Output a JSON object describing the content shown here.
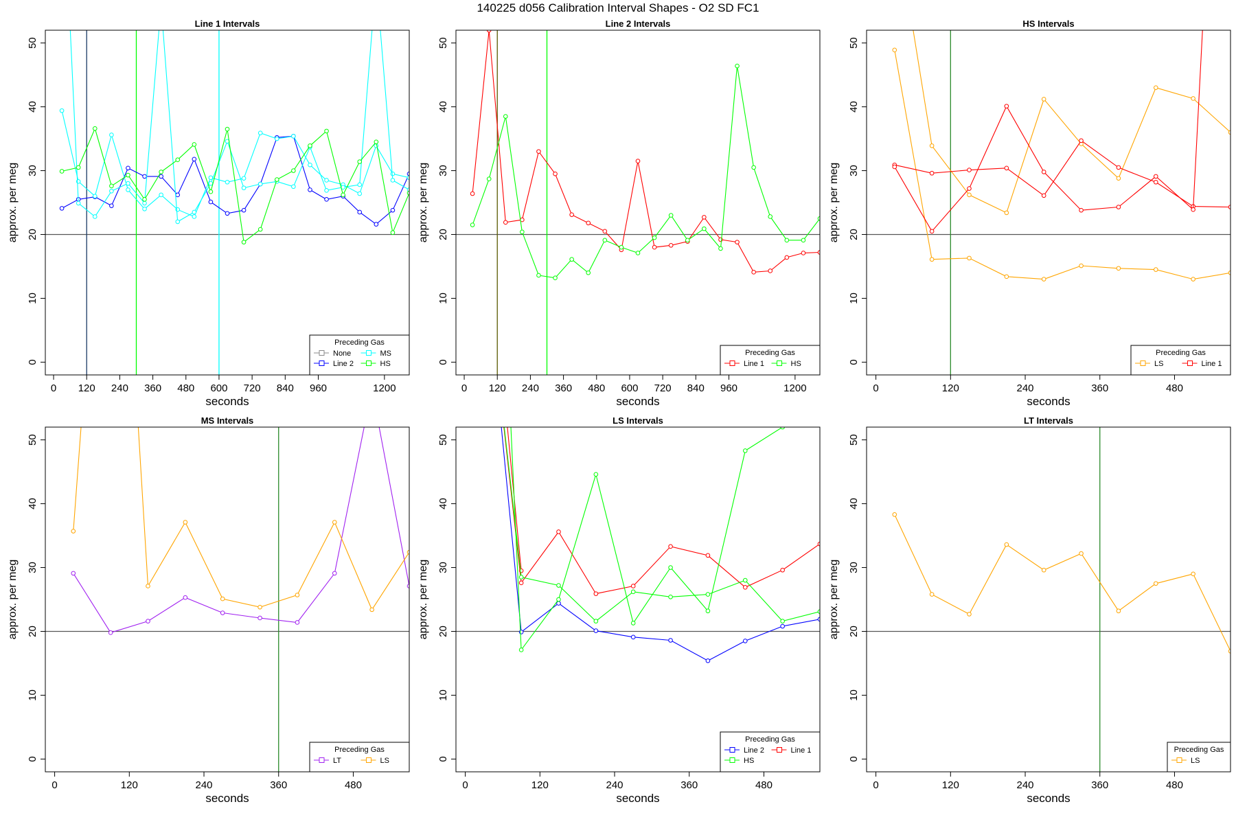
{
  "page": {
    "title": "140225   d056   Calibration Interval Shapes - O2 SD FC1"
  },
  "chart_data": [
    {
      "type": "line",
      "title": "Line 1 Intervals",
      "xlabel": "seconds",
      "ylabel": "approx. per meg",
      "xlim": [
        -30,
        1290
      ],
      "ylim": [
        -2,
        52
      ],
      "xticks": [
        0,
        120,
        240,
        360,
        480,
        600,
        720,
        840,
        960,
        1200
      ],
      "yticks": [
        0,
        10,
        20,
        30,
        40,
        50
      ],
      "hlines": [
        20
      ],
      "vlines": [
        {
          "x": 120,
          "color": "#1a3a66"
        },
        {
          "x": 300,
          "color": "#00ff00"
        },
        {
          "x": 600,
          "color": "#00ffff"
        }
      ],
      "legend": {
        "title": "Preceding Gas",
        "position": "bottom-right",
        "columns": 2,
        "entries": [
          "None",
          "MS",
          "Line 2",
          "HS"
        ]
      },
      "series": [
        {
          "name": "Line 2",
          "color": "#0000ff",
          "x": [
            30,
            90,
            150,
            210,
            270,
            330,
            390,
            450,
            510,
            570,
            630,
            690,
            750,
            810,
            870,
            930,
            990,
            1050,
            1110,
            1170,
            1230,
            1290
          ],
          "y": [
            24.1,
            25.5,
            25.9,
            24.5,
            30.4,
            29.1,
            29.1,
            26.2,
            31.8,
            25.1,
            23.3,
            23.8,
            27.9,
            35.2,
            35.4,
            27.0,
            25.5,
            26.0,
            23.5,
            21.6,
            23.8,
            29.5
          ]
        },
        {
          "name": "MS",
          "color": "#00ffff",
          "x": [
            30,
            90,
            150,
            210,
            270,
            330,
            390,
            450,
            510,
            570,
            630,
            690,
            750,
            810,
            870,
            930,
            990,
            1050,
            1110,
            1170,
            1230,
            1290
          ],
          "y": [
            39.4,
            28.3,
            26.0,
            35.6,
            27.0,
            24.0,
            26.2,
            23.9,
            22.8,
            28.9,
            28.2,
            28.8,
            35.9,
            35.0,
            35.4,
            30.9,
            28.5,
            27.8,
            26.4,
            33.9,
            29.5,
            28.9
          ]
        },
        {
          "name": "MS",
          "color": "#00ffff",
          "x": [
            30,
            90,
            150,
            210,
            270,
            330,
            390,
            450,
            510,
            570,
            630,
            690,
            750,
            810,
            870,
            930,
            990,
            1050,
            1110,
            1170,
            1230,
            1290
          ],
          "y": [
            80,
            24.9,
            22.8,
            26.8,
            28.0,
            24.9,
            56.0,
            22.0,
            23.5,
            28.0,
            34.6,
            27.3,
            27.9,
            28.3,
            27.5,
            33.7,
            26.9,
            27.4,
            27.8,
            60.0,
            28.5,
            27.0
          ]
        },
        {
          "name": "HS",
          "color": "#00ff00",
          "x": [
            30,
            90,
            150,
            210,
            270,
            330,
            390,
            450,
            510,
            570,
            630,
            690,
            750,
            810,
            870,
            930,
            990,
            1050,
            1110,
            1170,
            1230,
            1290
          ],
          "y": [
            29.9,
            30.5,
            36.6,
            27.6,
            29.3,
            25.5,
            29.8,
            31.7,
            34.1,
            26.7,
            36.5,
            18.8,
            20.8,
            28.6,
            30.0,
            33.9,
            36.2,
            26.2,
            31.4,
            34.5,
            20.3,
            26.5
          ]
        }
      ]
    },
    {
      "type": "line",
      "title": "Line 2 Intervals",
      "xlabel": "seconds",
      "ylabel": "approx. per meg",
      "xlim": [
        -30,
        1290
      ],
      "ylim": [
        -2,
        52
      ],
      "xticks": [
        0,
        120,
        240,
        360,
        480,
        600,
        720,
        840,
        960,
        1200
      ],
      "yticks": [
        0,
        10,
        20,
        30,
        40,
        50
      ],
      "hlines": [
        20
      ],
      "vlines": [
        {
          "x": 120,
          "color": "#5a5a00"
        },
        {
          "x": 300,
          "color": "#00ff00"
        }
      ],
      "legend": {
        "title": "Preceding Gas",
        "position": "bottom-right",
        "columns": 2,
        "entries": [
          "Line 1",
          "HS"
        ]
      },
      "series": [
        {
          "name": "Line 1",
          "color": "#ff0000",
          "x": [
            30,
            90,
            150,
            210,
            270,
            330,
            390,
            450,
            510,
            570,
            630,
            690,
            750,
            810,
            870,
            930,
            990,
            1050,
            1110,
            1170,
            1230,
            1290
          ],
          "y": [
            26.4,
            52.0,
            21.9,
            22.3,
            33.0,
            29.5,
            23.1,
            21.8,
            20.5,
            17.6,
            31.5,
            18.0,
            18.3,
            18.9,
            22.7,
            19.2,
            18.8,
            14.1,
            14.3,
            16.4,
            17.1,
            17.2
          ]
        },
        {
          "name": "HS",
          "color": "#00ff00",
          "x": [
            30,
            90,
            150,
            210,
            270,
            330,
            390,
            450,
            510,
            570,
            630,
            690,
            750,
            810,
            870,
            930,
            990,
            1050,
            1110,
            1170,
            1230,
            1290
          ],
          "y": [
            21.5,
            28.7,
            38.5,
            20.4,
            13.6,
            13.2,
            16.1,
            14.0,
            19.1,
            18.0,
            17.1,
            19.5,
            23.0,
            19.1,
            20.9,
            17.8,
            46.4,
            30.5,
            22.8,
            19.1,
            19.1,
            22.5
          ]
        }
      ]
    },
    {
      "type": "line",
      "title": "HS Intervals",
      "xlabel": "seconds",
      "ylabel": "approx. per meg",
      "xlim": [
        -15,
        570
      ],
      "ylim": [
        -2,
        52
      ],
      "xticks": [
        0,
        120,
        240,
        360,
        480
      ],
      "yticks": [
        0,
        10,
        20,
        30,
        40,
        50
      ],
      "hlines": [
        20
      ],
      "vlines": [
        {
          "x": 120,
          "color": "#2a8a2a"
        }
      ],
      "legend": {
        "title": "Preceding Gas",
        "position": "bottom-right",
        "columns": 2,
        "entries": [
          "LS",
          "Line 1"
        ]
      },
      "series": [
        {
          "name": "LS",
          "color": "#ffa500",
          "x": [
            30,
            90,
            150,
            210,
            270,
            330,
            390,
            450,
            510,
            570
          ],
          "y": [
            48.9,
            16.1,
            16.3,
            13.4,
            13.0,
            15.1,
            14.7,
            14.5,
            13.0,
            14.0
          ]
        },
        {
          "name": "LS",
          "color": "#ffa500",
          "x": [
            30,
            90,
            150,
            210,
            270,
            330,
            390,
            450,
            510,
            570
          ],
          "y": [
            70.0,
            33.9,
            26.2,
            23.4,
            41.2,
            34.2,
            28.8,
            43.0,
            41.3,
            36.0
          ]
        },
        {
          "name": "Line 1",
          "color": "#ff0000",
          "x": [
            30,
            90,
            150,
            210,
            270,
            330,
            390,
            450,
            510,
            570
          ],
          "y": [
            30.9,
            29.6,
            30.1,
            30.4,
            26.1,
            34.7,
            30.5,
            28.2,
            24.4,
            24.3
          ]
        },
        {
          "name": "Line 1",
          "color": "#ff0000",
          "x": [
            30,
            90,
            150,
            210,
            270,
            330,
            390,
            450,
            510,
            540
          ],
          "y": [
            30.6,
            20.5,
            27.2,
            40.1,
            29.8,
            23.8,
            24.3,
            29.1,
            23.9,
            80.0
          ]
        }
      ]
    },
    {
      "type": "line",
      "title": "MS Intervals",
      "xlabel": "seconds",
      "ylabel": "approx. per meg",
      "xlim": [
        -15,
        570
      ],
      "ylim": [
        -2,
        52
      ],
      "xticks": [
        0,
        120,
        240,
        360,
        480
      ],
      "yticks": [
        0,
        10,
        20,
        30,
        40,
        50
      ],
      "hlines": [
        20
      ],
      "vlines": [
        {
          "x": 360,
          "color": "#2a8a2a"
        }
      ],
      "legend": {
        "title": "Preceding Gas",
        "position": "bottom-right",
        "columns": 2,
        "entries": [
          "LT",
          "LS"
        ]
      },
      "series": [
        {
          "name": "LT",
          "color": "#a020f0",
          "x": [
            30,
            90,
            150,
            210,
            270,
            330,
            390,
            450,
            510,
            570
          ],
          "y": [
            29.1,
            19.8,
            21.6,
            25.3,
            22.9,
            22.1,
            21.4,
            29.1,
            58.0,
            27.1
          ]
        },
        {
          "name": "LS",
          "color": "#ffa500",
          "x": [
            30,
            60,
            120,
            150,
            210,
            270,
            330,
            390,
            450,
            510,
            570
          ],
          "y": [
            35.7,
            75.0,
            75.0,
            27.1,
            37.1,
            25.1,
            23.8,
            25.7,
            37.1,
            23.4,
            32.4
          ]
        }
      ]
    },
    {
      "type": "line",
      "title": "LS Intervals",
      "xlabel": "seconds",
      "ylabel": "approx. per meg",
      "xlim": [
        -15,
        570
      ],
      "ylim": [
        -2,
        52
      ],
      "xticks": [
        0,
        120,
        240,
        360,
        480
      ],
      "yticks": [
        0,
        10,
        20,
        30,
        40,
        50
      ],
      "hlines": [
        20
      ],
      "vlines": [],
      "legend": {
        "title": "Preceding Gas",
        "position": "bottom-right",
        "columns": 2,
        "entries": [
          "Line 2",
          "Line 1",
          "HS"
        ]
      },
      "series": [
        {
          "name": "Line 2",
          "color": "#0000ff",
          "x": [
            30,
            90,
            150,
            210,
            270,
            330,
            390,
            450,
            510,
            570
          ],
          "y": [
            80.0,
            19.9,
            24.4,
            20.1,
            19.1,
            18.6,
            15.4,
            18.5,
            20.8,
            21.9
          ]
        },
        {
          "name": "Line 1",
          "color": "#ff0000",
          "x": [
            30,
            90,
            150,
            210,
            270,
            330,
            390,
            450,
            510,
            570
          ],
          "y": [
            80.0,
            27.6,
            35.6,
            25.9,
            27.1,
            33.3,
            31.9,
            26.9,
            29.6,
            33.7
          ]
        },
        {
          "name": "Line 1",
          "color": "#ff0000",
          "x": [
            40,
            90
          ],
          "y": [
            80.0,
            29.5
          ]
        },
        {
          "name": "HS",
          "color": "#00ff00",
          "x": [
            30,
            90,
            150,
            210,
            270,
            330,
            390,
            450,
            510,
            570
          ],
          "y": [
            80.0,
            28.5,
            27.2,
            21.6,
            26.2,
            25.4,
            25.8,
            28.0,
            21.6,
            23.1
          ]
        },
        {
          "name": "HS",
          "color": "#00ff00",
          "x": [
            60,
            90,
            150,
            210,
            270,
            330,
            390,
            450,
            510,
            570
          ],
          "y": [
            80.0,
            17.1,
            25.0,
            44.6,
            21.3,
            30.0,
            23.2,
            48.3,
            52.0,
            55.0
          ]
        }
      ]
    },
    {
      "type": "line",
      "title": "LT Intervals",
      "xlabel": "seconds",
      "ylabel": "approx. per meg",
      "xlim": [
        -15,
        570
      ],
      "ylim": [
        -2,
        52
      ],
      "xticks": [
        0,
        120,
        240,
        360,
        480
      ],
      "yticks": [
        0,
        10,
        20,
        30,
        40,
        50
      ],
      "hlines": [
        20
      ],
      "vlines": [
        {
          "x": 360,
          "color": "#2a8a2a"
        }
      ],
      "legend": {
        "title": "Preceding Gas",
        "position": "bottom-right",
        "columns": 1,
        "entries": [
          "LS"
        ]
      },
      "series": [
        {
          "name": "LS",
          "color": "#ffa500",
          "x": [
            30,
            90,
            150,
            210,
            270,
            330,
            390,
            450,
            510,
            570
          ],
          "y": [
            38.3,
            25.8,
            22.7,
            33.6,
            29.6,
            32.2,
            23.2,
            27.5,
            29.0,
            16.9
          ]
        }
      ]
    }
  ]
}
